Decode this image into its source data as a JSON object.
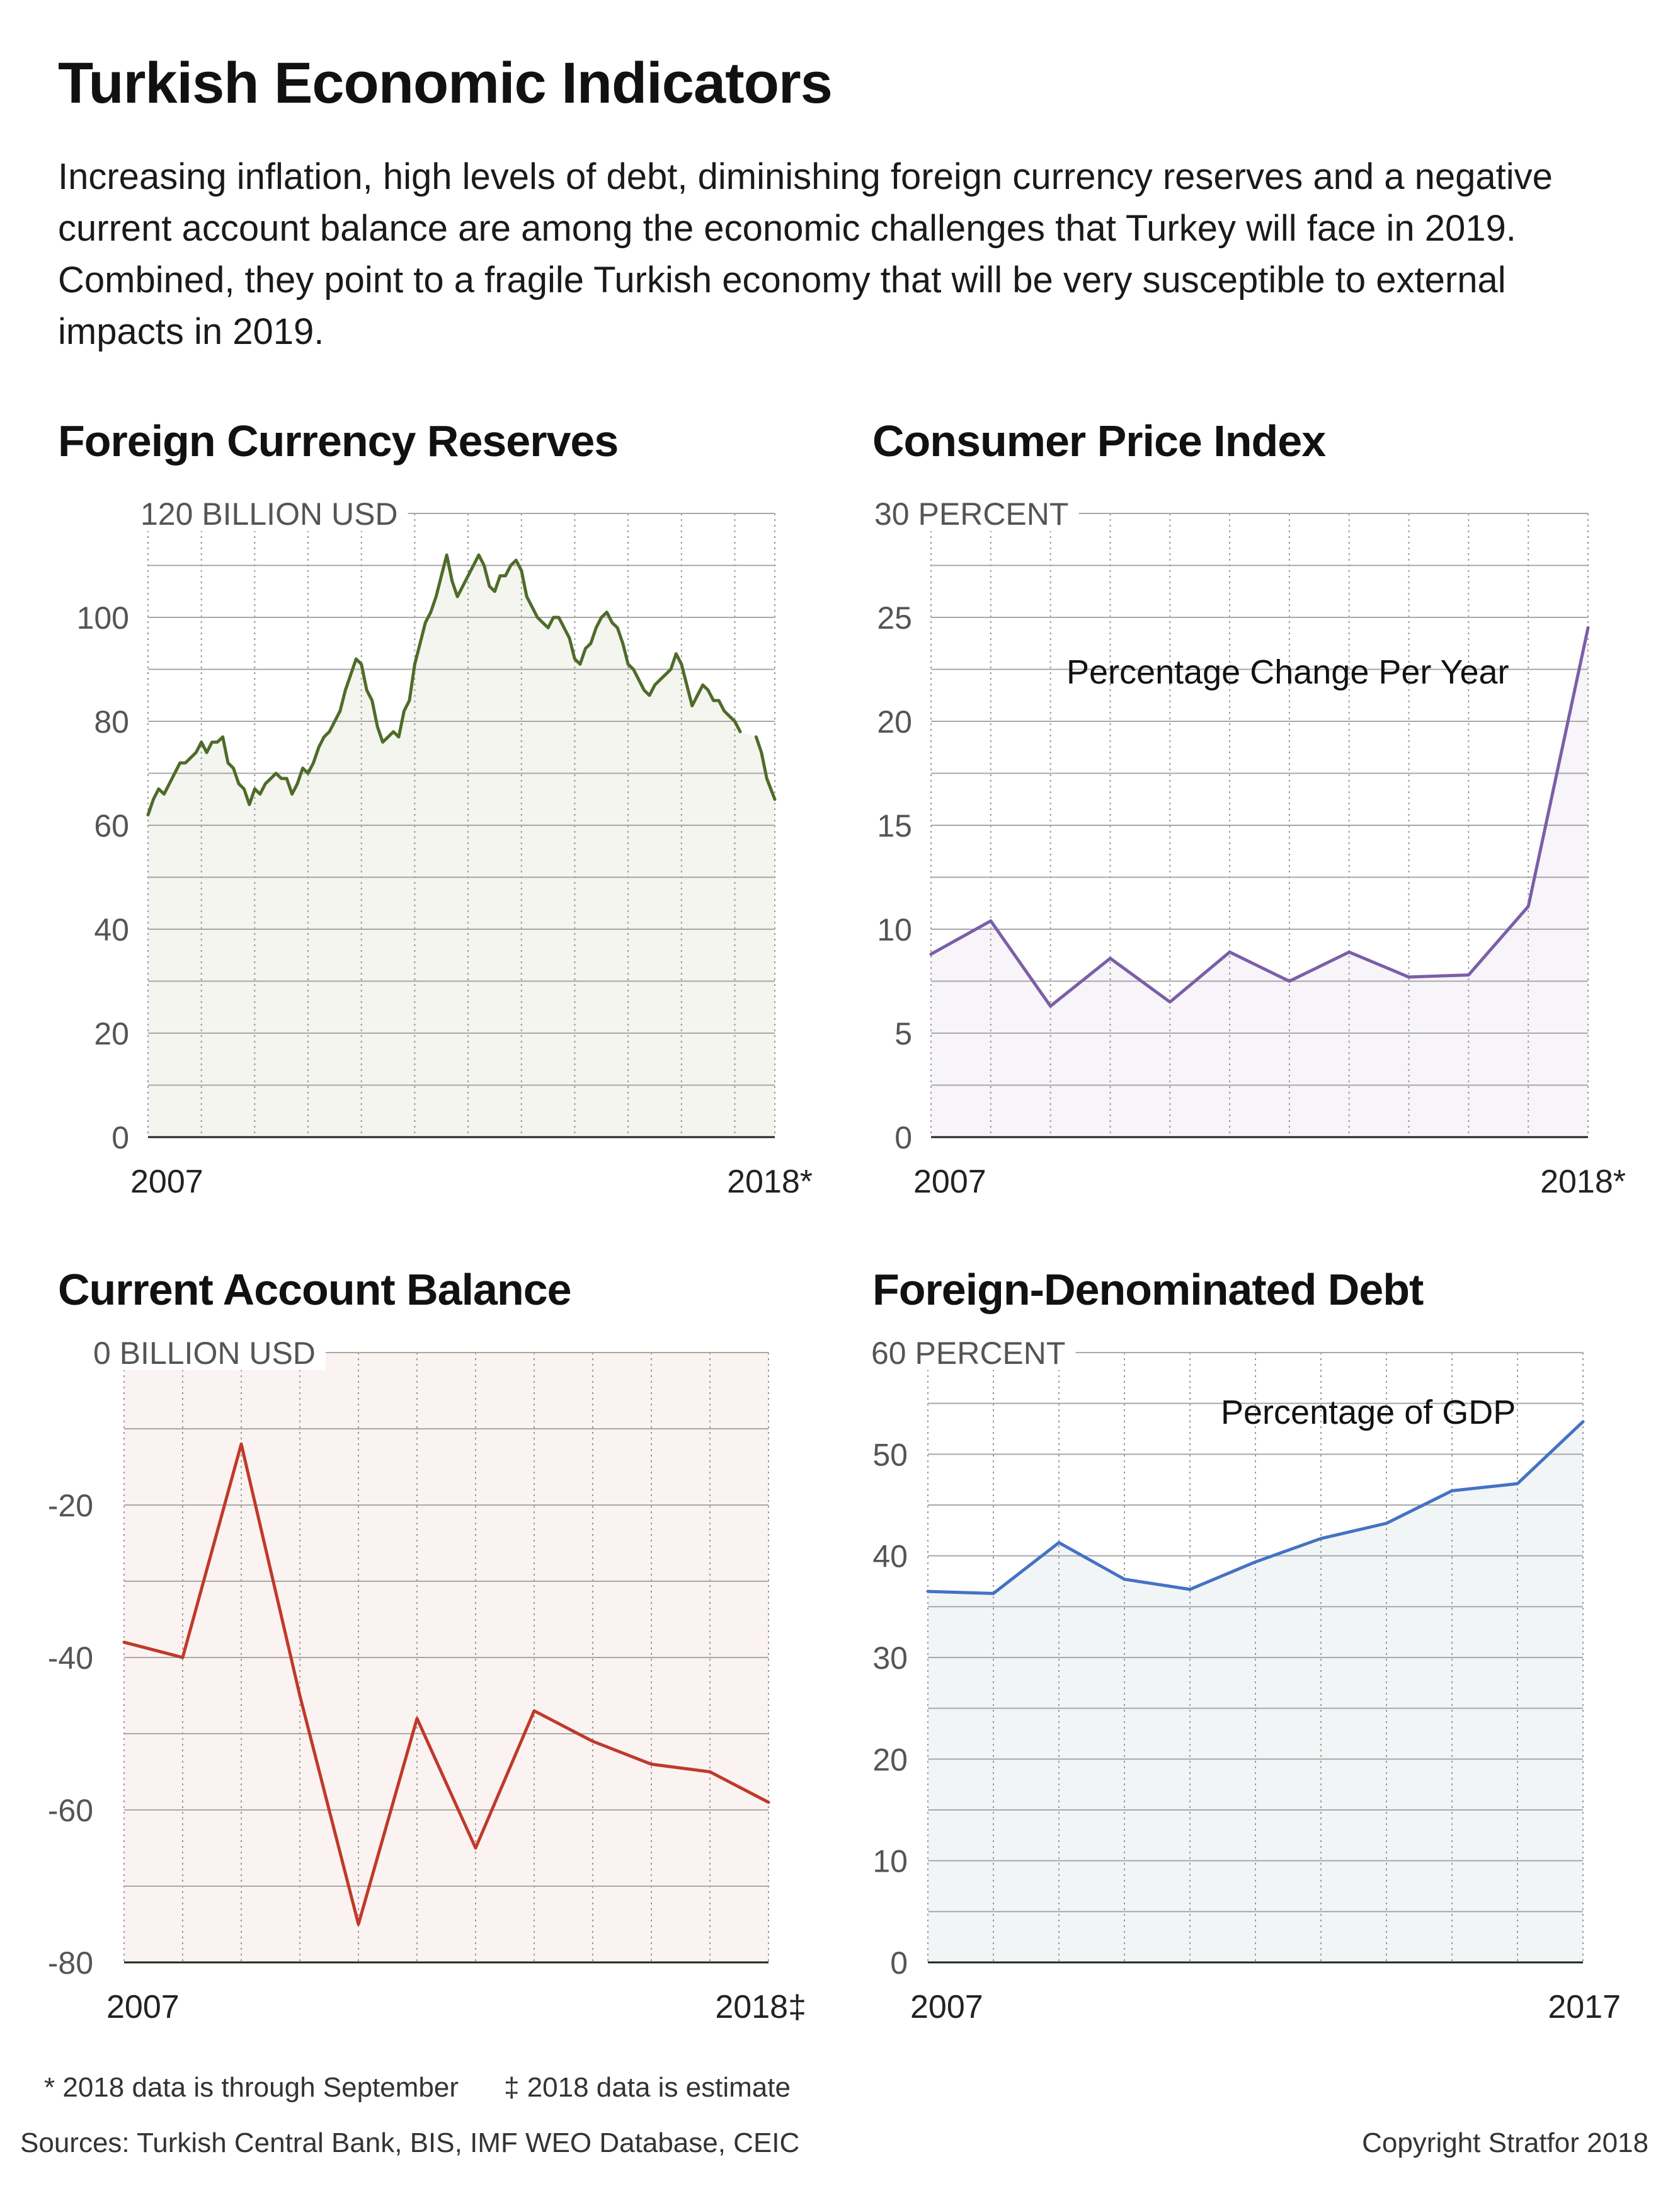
{
  "title": "Turkish Economic Indicators",
  "subtitle": "Increasing inflation, high levels of debt, diminishing foreign currency reserves and a negative current account balance are among the economic challenges that Turkey will face in 2019. Combined, they point to a fragile Turkish economy that will be very susceptible to external impacts in 2019.",
  "footnotes": {
    "september": "* 2018 data is through September",
    "estimate": "‡ 2018 data is estimate"
  },
  "sources": "Sources: Turkish Central Bank, BIS, IMF WEO Database, CEIC",
  "copyright": "Copyright Stratfor 2018",
  "chart_data": [
    {
      "type": "area",
      "title": "Foreign Currency Reserves",
      "unit_label": "BILLION USD",
      "annotation": "",
      "x_start_label": "2007",
      "x_end_label": "2018*",
      "ylim": [
        0,
        120
      ],
      "yticks": [
        0,
        20,
        40,
        60,
        80,
        100,
        120
      ],
      "line_color": "#4f6b2a",
      "fill_color": "#f3f5ee",
      "x_range": [
        2007,
        2018.75
      ],
      "x_gap": [
        2018.1,
        2018.4
      ],
      "x": [
        2007.0,
        2007.1,
        2007.2,
        2007.3,
        2007.4,
        2007.5,
        2007.6,
        2007.7,
        2007.8,
        2007.9,
        2008.0,
        2008.1,
        2008.2,
        2008.3,
        2008.4,
        2008.5,
        2008.6,
        2008.7,
        2008.8,
        2008.9,
        2009.0,
        2009.1,
        2009.2,
        2009.3,
        2009.4,
        2009.5,
        2009.6,
        2009.7,
        2009.8,
        2009.9,
        2010.0,
        2010.1,
        2010.2,
        2010.3,
        2010.4,
        2010.5,
        2010.6,
        2010.7,
        2010.8,
        2010.9,
        2011.0,
        2011.1,
        2011.2,
        2011.3,
        2011.4,
        2011.5,
        2011.6,
        2011.7,
        2011.8,
        2011.9,
        2012.0,
        2012.1,
        2012.2,
        2012.3,
        2012.4,
        2012.5,
        2012.6,
        2012.7,
        2012.8,
        2012.9,
        2013.0,
        2013.1,
        2013.2,
        2013.3,
        2013.4,
        2013.5,
        2013.6,
        2013.7,
        2013.8,
        2013.9,
        2014.0,
        2014.1,
        2014.2,
        2014.3,
        2014.4,
        2014.5,
        2014.6,
        2014.7,
        2014.8,
        2014.9,
        2015.0,
        2015.1,
        2015.2,
        2015.3,
        2015.4,
        2015.5,
        2015.6,
        2015.7,
        2015.8,
        2015.9,
        2016.0,
        2016.1,
        2016.2,
        2016.3,
        2016.4,
        2016.5,
        2016.6,
        2016.7,
        2016.8,
        2016.9,
        2017.0,
        2017.1,
        2017.2,
        2017.3,
        2017.4,
        2017.5,
        2017.6,
        2017.7,
        2017.8,
        2017.9,
        2018.0,
        2018.1,
        2018.4,
        2018.5,
        2018.6,
        2018.75
      ],
      "values": [
        62,
        65,
        67,
        66,
        68,
        70,
        72,
        72,
        73,
        74,
        76,
        74,
        76,
        76,
        77,
        72,
        71,
        68,
        67,
        64,
        67,
        66,
        68,
        69,
        70,
        69,
        69,
        66,
        68,
        71,
        70,
        72,
        75,
        77,
        78,
        80,
        82,
        86,
        89,
        92,
        91,
        86,
        84,
        79,
        76,
        77,
        78,
        77,
        82,
        84,
        91,
        95,
        99,
        101,
        104,
        108,
        112,
        107,
        104,
        106,
        108,
        110,
        112,
        110,
        106,
        105,
        108,
        108,
        110,
        111,
        109,
        104,
        102,
        100,
        99,
        98,
        100,
        100,
        98,
        96,
        92,
        91,
        94,
        95,
        98,
        100,
        101,
        99,
        98,
        95,
        91,
        90,
        88,
        86,
        85,
        87,
        88,
        89,
        90,
        93,
        91,
        87,
        83,
        85,
        87,
        86,
        84,
        84,
        82,
        81,
        80,
        78,
        77,
        74,
        69,
        65
      ]
    },
    {
      "type": "area",
      "title": "Consumer Price Index",
      "unit_label": "PERCENT",
      "annotation": "Percentage Change Per Year",
      "x_start_label": "2007",
      "x_end_label": "2018*",
      "ylim": [
        0,
        30
      ],
      "yticks": [
        0,
        5,
        10,
        15,
        20,
        25,
        30
      ],
      "line_color": "#7b5ea7",
      "fill_color": "#f7f4fa",
      "x": [
        2007,
        2008,
        2009,
        2010,
        2011,
        2012,
        2013,
        2014,
        2015,
        2016,
        2017,
        2018
      ],
      "values": [
        8.8,
        10.4,
        6.3,
        8.6,
        6.5,
        8.9,
        7.5,
        8.9,
        7.7,
        7.8,
        11.1,
        24.5
      ]
    },
    {
      "type": "area",
      "title": "Current Account Balance",
      "unit_label": "BILLION USD",
      "annotation": "",
      "x_start_label": "2007",
      "x_end_label": "2018‡",
      "ylim": [
        -80,
        0
      ],
      "yticks": [
        -80,
        -60,
        -40,
        -20,
        0
      ],
      "line_color": "#c0392b",
      "fill_color": "#fbf3f1",
      "x": [
        2007,
        2008,
        2009,
        2010,
        2011,
        2012,
        2013,
        2014,
        2015,
        2016,
        2017,
        2018
      ],
      "values": [
        -38,
        -40,
        -12,
        -45,
        -75,
        -48,
        -65,
        -47,
        -51,
        -54,
        -55,
        -59
      ]
    },
    {
      "type": "area",
      "title": "Foreign-Denominated Debt",
      "unit_label": "PERCENT",
      "annotation": "Percentage of GDP",
      "x_start_label": "2007",
      "x_end_label": "2017",
      "ylim": [
        0,
        60
      ],
      "yticks": [
        0,
        10,
        20,
        30,
        40,
        50,
        60
      ],
      "line_color": "#4472c4",
      "fill_color": "#f2f5f6",
      "x": [
        2007,
        2008,
        2009,
        2010,
        2011,
        2012,
        2013,
        2014,
        2015,
        2016,
        2017
      ],
      "values": [
        36.5,
        36.3,
        41.3,
        37.7,
        36.7,
        39.4,
        41.7,
        43.2,
        46.4,
        47.1,
        53.2
      ]
    }
  ]
}
